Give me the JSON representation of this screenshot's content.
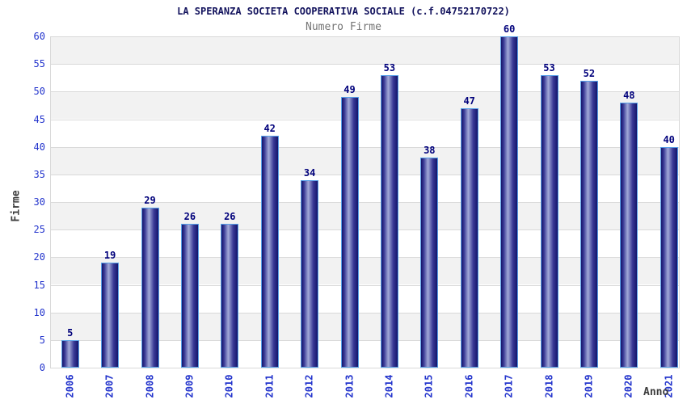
{
  "chart_data": {
    "type": "bar",
    "title": "LA SPERANZA SOCIETA COOPERATIVA SOCIALE (c.f.04752170722)",
    "subtitle": "Numero Firme",
    "xlabel": "Anno",
    "ylabel": "Firme",
    "categories": [
      "2006",
      "2007",
      "2008",
      "2009",
      "2010",
      "2011",
      "2012",
      "2013",
      "2014",
      "2015",
      "2016",
      "2017",
      "2018",
      "2019",
      "2020",
      "2021"
    ],
    "values": [
      5,
      19,
      29,
      26,
      26,
      42,
      34,
      49,
      53,
      38,
      47,
      60,
      53,
      52,
      48,
      40
    ],
    "ylim": [
      0,
      60
    ],
    "ytick_step": 5,
    "grid": true,
    "band_shading": true,
    "legend_position": "none"
  },
  "colors": {
    "title_text": "#14145e",
    "subtitle_text": "#757575",
    "tick_text": "#2233cc",
    "value_label_text": "#00007b",
    "axis_label_text": "#3c3c3c",
    "band_gray": "#f2f2f2",
    "band_white": "#ffffff",
    "gridline": "#d9d9d9",
    "bar_edge_dark": "#14146a",
    "bar_mid_dark": "#3a3a96",
    "bar_center_light": "#a2aad8",
    "bar_border": "#58a0e8",
    "background": "#ffffff"
  }
}
